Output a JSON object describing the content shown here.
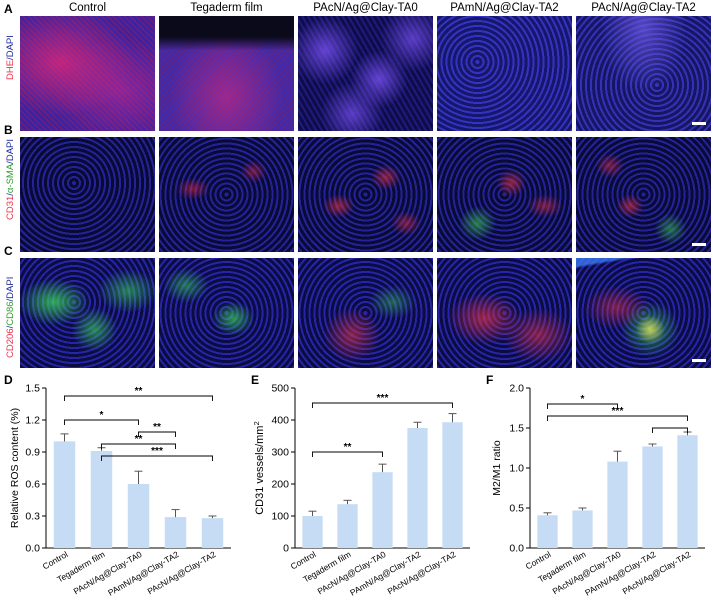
{
  "figure": {
    "panel_letters": [
      "A",
      "B",
      "C",
      "D",
      "E",
      "F"
    ],
    "column_headers": [
      "Control",
      "Tegaderm film",
      "PAcN/Ag@Clay-TA0",
      "PAmN/Ag@Clay-TA2",
      "PAcN/Ag@Clay-TA2"
    ],
    "row_labels": [
      {
        "parts": [
          {
            "text": "DHE",
            "color": "#e8304a"
          },
          {
            "text": "/",
            "color": "#1f2a9a"
          },
          {
            "text": "DAPI",
            "color": "#1f2a9a"
          }
        ]
      },
      {
        "parts": [
          {
            "text": "CD31",
            "color": "#e8304a"
          },
          {
            "text": "/",
            "color": "#1f2a9a"
          },
          {
            "text": "α-SMA",
            "color": "#2ca02c"
          },
          {
            "text": "/",
            "color": "#1f2a9a"
          },
          {
            "text": "DAPI",
            "color": "#1f2a9a"
          }
        ]
      },
      {
        "parts": [
          {
            "text": "CD206",
            "color": "#e8304a"
          },
          {
            "text": "/",
            "color": "#1f2a9a"
          },
          {
            "text": "CD86",
            "color": "#2ca02c"
          },
          {
            "text": "/",
            "color": "#1f2a9a"
          },
          {
            "text": "DAPI",
            "color": "#1f2a9a"
          }
        ]
      }
    ],
    "micrograph_colors": {
      "blue": "#1b1a7a",
      "red": "#d2245a",
      "green": "#39c24a",
      "dark": "#0a0a2e"
    }
  },
  "chart_data": [
    {
      "type": "bar",
      "panel": "D",
      "categories": [
        "Control",
        "Tegaderm film",
        "PAcN/Ag@Clay-TA0",
        "PAmN/Ag@Clay-TA2",
        "PAcN/Ag@Clay-TA2"
      ],
      "values": [
        1.0,
        0.91,
        0.6,
        0.29,
        0.28
      ],
      "errors": [
        0.07,
        0.03,
        0.12,
        0.07,
        0.02
      ],
      "ylabel": "Relative ROS content (%)",
      "ylim": [
        0,
        1.5
      ],
      "yticks": [
        "0.0",
        "0.3",
        "0.6",
        "0.9",
        "1.2",
        "1.5"
      ],
      "bar_color": "#c6dcf5",
      "significance": [
        {
          "from": 0,
          "to": 4,
          "label": "**"
        },
        {
          "from": 0,
          "to": 2,
          "label": "*"
        },
        {
          "from": 2,
          "to": 3,
          "label": "**"
        },
        {
          "from": 1,
          "to": 3,
          "label": "**"
        },
        {
          "from": 1,
          "to": 4,
          "label": "***"
        }
      ]
    },
    {
      "type": "bar",
      "panel": "E",
      "categories": [
        "Control",
        "Tegaderm film",
        "PAcN/Ag@Clay-TA0",
        "PAmN/Ag@Clay-TA2",
        "PAcN/Ag@Clay-TA2"
      ],
      "values": [
        100,
        137,
        237,
        375,
        393
      ],
      "errors": [
        15,
        12,
        25,
        18,
        27
      ],
      "ylabel": "CD31 vessels/mm",
      "ylabel_sup": "2",
      "ylim": [
        0,
        500
      ],
      "yticks": [
        "0",
        "100",
        "200",
        "300",
        "400",
        "500"
      ],
      "bar_color": "#c6dcf5",
      "significance": [
        {
          "from": 0,
          "to": 4,
          "label": "***"
        },
        {
          "from": 0,
          "to": 2,
          "label": "**"
        }
      ]
    },
    {
      "type": "bar",
      "panel": "F",
      "categories": [
        "Control",
        "Tegaderm film",
        "PAcN/Ag@Clay-TA0",
        "PAmN/Ag@Clay-TA2",
        "PAcN/Ag@Clay-TA2"
      ],
      "values": [
        0.41,
        0.47,
        1.08,
        1.27,
        1.41
      ],
      "errors": [
        0.03,
        0.03,
        0.13,
        0.03,
        0.04
      ],
      "ylabel": "M2/M1 ratio",
      "ylim": [
        0,
        2.0
      ],
      "yticks": [
        "0.0",
        "0.5",
        "1.0",
        "1.5",
        "2.0"
      ],
      "bar_color": "#c6dcf5",
      "significance": [
        {
          "from": 0,
          "to": 2,
          "label": "*"
        },
        {
          "from": 0,
          "to": 4,
          "label": "***"
        },
        {
          "from": 3,
          "to": 4,
          "label": ""
        }
      ]
    }
  ]
}
